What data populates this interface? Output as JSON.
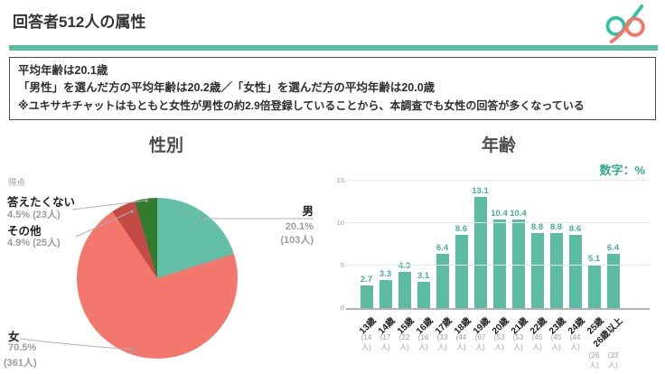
{
  "header": {
    "title": "回答者512人の属性",
    "logo": "dxp-logo"
  },
  "note": {
    "line1": "平均年齢は20.1歳",
    "line2": "「男性」を選んだ方の平均年齢は20.2歳／「女性」を選んだ方の平均年齢は20.0歳",
    "line3": "※ユキサキチャットはもともと女性が男性の約2.9倍登録していることから、本調査でも女性の回答が多くなっている"
  },
  "pie": {
    "title": "性別",
    "corner_label": "得点",
    "labels": {
      "no_answer_name": "答えたくない",
      "no_answer_detail": "4.5% (23人)",
      "other_name": "その他",
      "other_detail": "4.9% (25人)",
      "male_name": "男",
      "male_pct": "20.1%",
      "male_count": "(103人)",
      "female_name": "女",
      "female_pct": "70.5%",
      "female_count": "(361人)"
    }
  },
  "bar": {
    "title": "年齢",
    "legend": "数字：%"
  },
  "chart_data": [
    {
      "type": "pie",
      "title": "性別",
      "labels": [
        "男",
        "女",
        "その他",
        "答えたくない"
      ],
      "values": [
        20.1,
        70.5,
        4.9,
        4.5
      ],
      "counts": [
        103,
        361,
        25,
        23
      ],
      "colors": [
        "#63BFA6",
        "#F3776D",
        "#C24B46",
        "#327D2D"
      ],
      "start_angle": 0,
      "direction": "clockwise"
    },
    {
      "type": "bar",
      "title": "年齢",
      "legend": "数字：%",
      "categories": [
        "13歳",
        "14歳",
        "15歳",
        "16歳",
        "17歳",
        "18歳",
        "19歳",
        "20歳",
        "21歳",
        "22歳",
        "23歳",
        "24歳",
        "25歳",
        "26歳以上"
      ],
      "values": [
        2.7,
        3.3,
        4.3,
        3.1,
        6.4,
        8.6,
        13.1,
        10.4,
        10.4,
        8.8,
        8.8,
        8.6,
        5.1,
        6.4
      ],
      "counts": [
        14,
        17,
        22,
        16,
        33,
        44,
        67,
        53,
        53,
        45,
        45,
        44,
        26,
        33
      ],
      "ylabel": "",
      "xlabel": "",
      "ylim": [
        0,
        15
      ],
      "y_ticks": [
        15,
        10,
        5,
        0
      ],
      "bar_color": "#5CBCA2",
      "grid": true
    }
  ],
  "colors": {
    "brand_teal": "#5CBCA2",
    "logo_teal": "#2FC39F",
    "logo_coral": "#F4756A",
    "value_label_teal": "#44B094",
    "legend_teal": "#35A88C"
  }
}
